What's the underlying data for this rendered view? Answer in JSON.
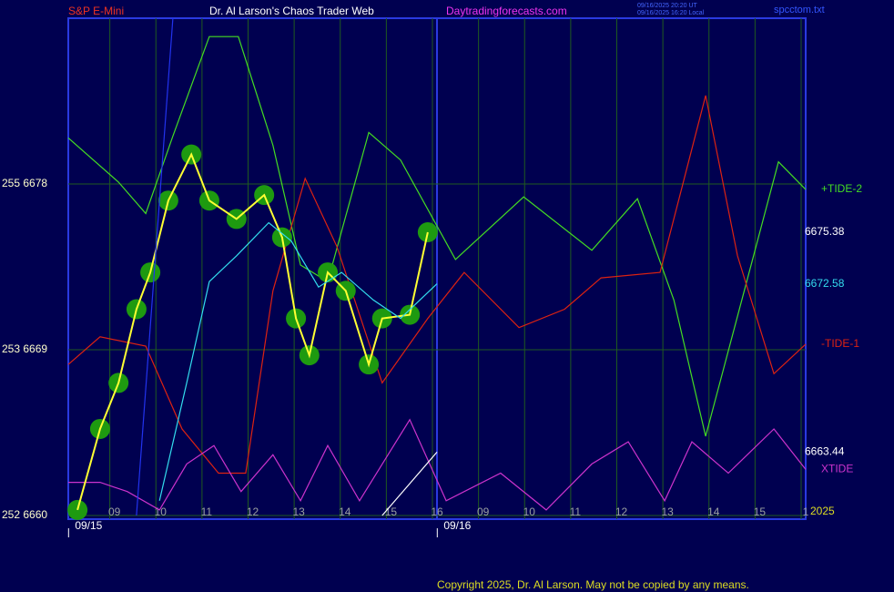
{
  "header": {
    "symbol": "S&P E-Mini",
    "site_title": "Dr. Al Larson's Chaos Trader Web",
    "site_url": "Daytradingforecasts.com",
    "stamp_ut": "09/16/2025 20:20 UT",
    "stamp_local": "09/16/2025 16:20 Local",
    "file": "spcctom.txt"
  },
  "footer": {
    "copyright": "Copyright 2025, Dr. Al Larson. May not be copied by any means."
  },
  "chart_data": {
    "type": "line",
    "xlim": [
      0,
      16
    ],
    "ylim": [
      6660,
      6687
    ],
    "xticks": [
      {
        "value": 1,
        "label": "09"
      },
      {
        "value": 2,
        "label": "10"
      },
      {
        "value": 3,
        "label": "11"
      },
      {
        "value": 4,
        "label": "12"
      },
      {
        "value": 5,
        "label": "13"
      },
      {
        "value": 6,
        "label": "14"
      },
      {
        "value": 7,
        "label": "15"
      },
      {
        "value": 8,
        "label": "16"
      },
      {
        "value": 9,
        "label": "09"
      },
      {
        "value": 10,
        "label": "10"
      },
      {
        "value": 11,
        "label": "11"
      },
      {
        "value": 12,
        "label": "12"
      },
      {
        "value": 13,
        "label": "13"
      },
      {
        "value": 14,
        "label": "14"
      },
      {
        "value": 15,
        "label": "15"
      },
      {
        "value": 16,
        "label": "1"
      }
    ],
    "yticks": [
      {
        "value": 6660,
        "label": "252  6660"
      },
      {
        "value": 6669,
        "label": "253  6669"
      },
      {
        "value": 6678,
        "label": "255  6678"
      }
    ],
    "dates": [
      {
        "value": 0.5,
        "label": "09/15"
      },
      {
        "value": 8.5,
        "label": "09/16"
      }
    ],
    "year": "2025",
    "grid": true,
    "series": [
      {
        "name": "+TIDE-2",
        "color": "#44dd22",
        "x": [
          0,
          1.09,
          1.68,
          2.27,
          3.06,
          3.69,
          4.44,
          5.04,
          5.63,
          6.52,
          7.21,
          8.4,
          9.88,
          11.36,
          12.35,
          13.14,
          13.83,
          14.72,
          15.41,
          16
        ],
        "values": [
          6680.5,
          6678.1,
          6676.4,
          6680.6,
          6686.0,
          6686.0,
          6680.1,
          6673.6,
          6672.7,
          6680.8,
          6679.3,
          6673.9,
          6677.3,
          6674.4,
          6677.2,
          6671.7,
          6664.3,
          6672.7,
          6679.2,
          6677.7
        ]
      },
      {
        "name": "-TIDE-1",
        "color": "#dd2211",
        "x": [
          0,
          0.69,
          1.68,
          2.47,
          3.26,
          3.85,
          4.44,
          5.14,
          5.83,
          6.81,
          7.8,
          8.59,
          9.78,
          10.77,
          11.56,
          12.84,
          13.83,
          14.52,
          15.31,
          16
        ],
        "values": [
          6668.2,
          6669.7,
          6669.2,
          6664.7,
          6662.3,
          6662.3,
          6672.2,
          6678.3,
          6674.6,
          6667.2,
          6670.7,
          6673.2,
          6670.2,
          6671.2,
          6672.9,
          6673.2,
          6682.8,
          6674.1,
          6667.7,
          6669.3
        ]
      },
      {
        "name": "XTIDE",
        "color": "#cc33cc",
        "x": [
          0,
          0.69,
          1.28,
          1.98,
          2.57,
          3.16,
          3.75,
          4.44,
          5.04,
          5.63,
          6.32,
          7.41,
          8.2,
          9.38,
          10.37,
          11.36,
          12.15,
          12.94,
          13.53,
          14.32,
          15.31,
          16
        ],
        "values": [
          6661.8,
          6661.8,
          6661.3,
          6660.3,
          6662.8,
          6663.8,
          6661.3,
          6663.3,
          6660.8,
          6663.8,
          6660.8,
          6665.2,
          6660.8,
          6662.3,
          6660.3,
          6662.8,
          6664.0,
          6660.8,
          6664.0,
          6662.3,
          6664.7,
          6662.5
        ]
      },
      {
        "color": "#ffff33",
        "marker_color": "#1e9a10",
        "end_label": "6675.38",
        "x": [
          0.2,
          0.69,
          1.09,
          1.48,
          1.78,
          2.17,
          2.67,
          3.06,
          3.65,
          4.25,
          4.64,
          4.94,
          5.23,
          5.63,
          6.02,
          6.52,
          6.81,
          7.41,
          7.8
        ],
        "values": [
          6660.3,
          6664.7,
          6667.2,
          6671.2,
          6673.2,
          6677.1,
          6679.6,
          6677.1,
          6676.1,
          6677.4,
          6675.1,
          6670.7,
          6668.7,
          6673.2,
          6672.2,
          6668.2,
          6670.7,
          6670.9,
          6675.38
        ]
      },
      {
        "color": "#33ddee",
        "end_label": "6672.58",
        "x": [
          1.98,
          2.57,
          3.06,
          3.65,
          4.35,
          4.84,
          5.43,
          5.93,
          6.62,
          7.21,
          8.0
        ],
        "values": [
          6660.8,
          6667.2,
          6672.7,
          6674.1,
          6675.9,
          6674.9,
          6672.4,
          6673.2,
          6671.7,
          6670.7,
          6672.58
        ]
      },
      {
        "color": "#2233ee",
        "x": [
          1.48,
          2.27
        ],
        "values": [
          6660,
          6687
        ]
      },
      {
        "color": "#ffffff",
        "end_label": "6663.44",
        "x": [
          6.81,
          8.0
        ],
        "values": [
          6660,
          6663.44
        ]
      }
    ]
  }
}
